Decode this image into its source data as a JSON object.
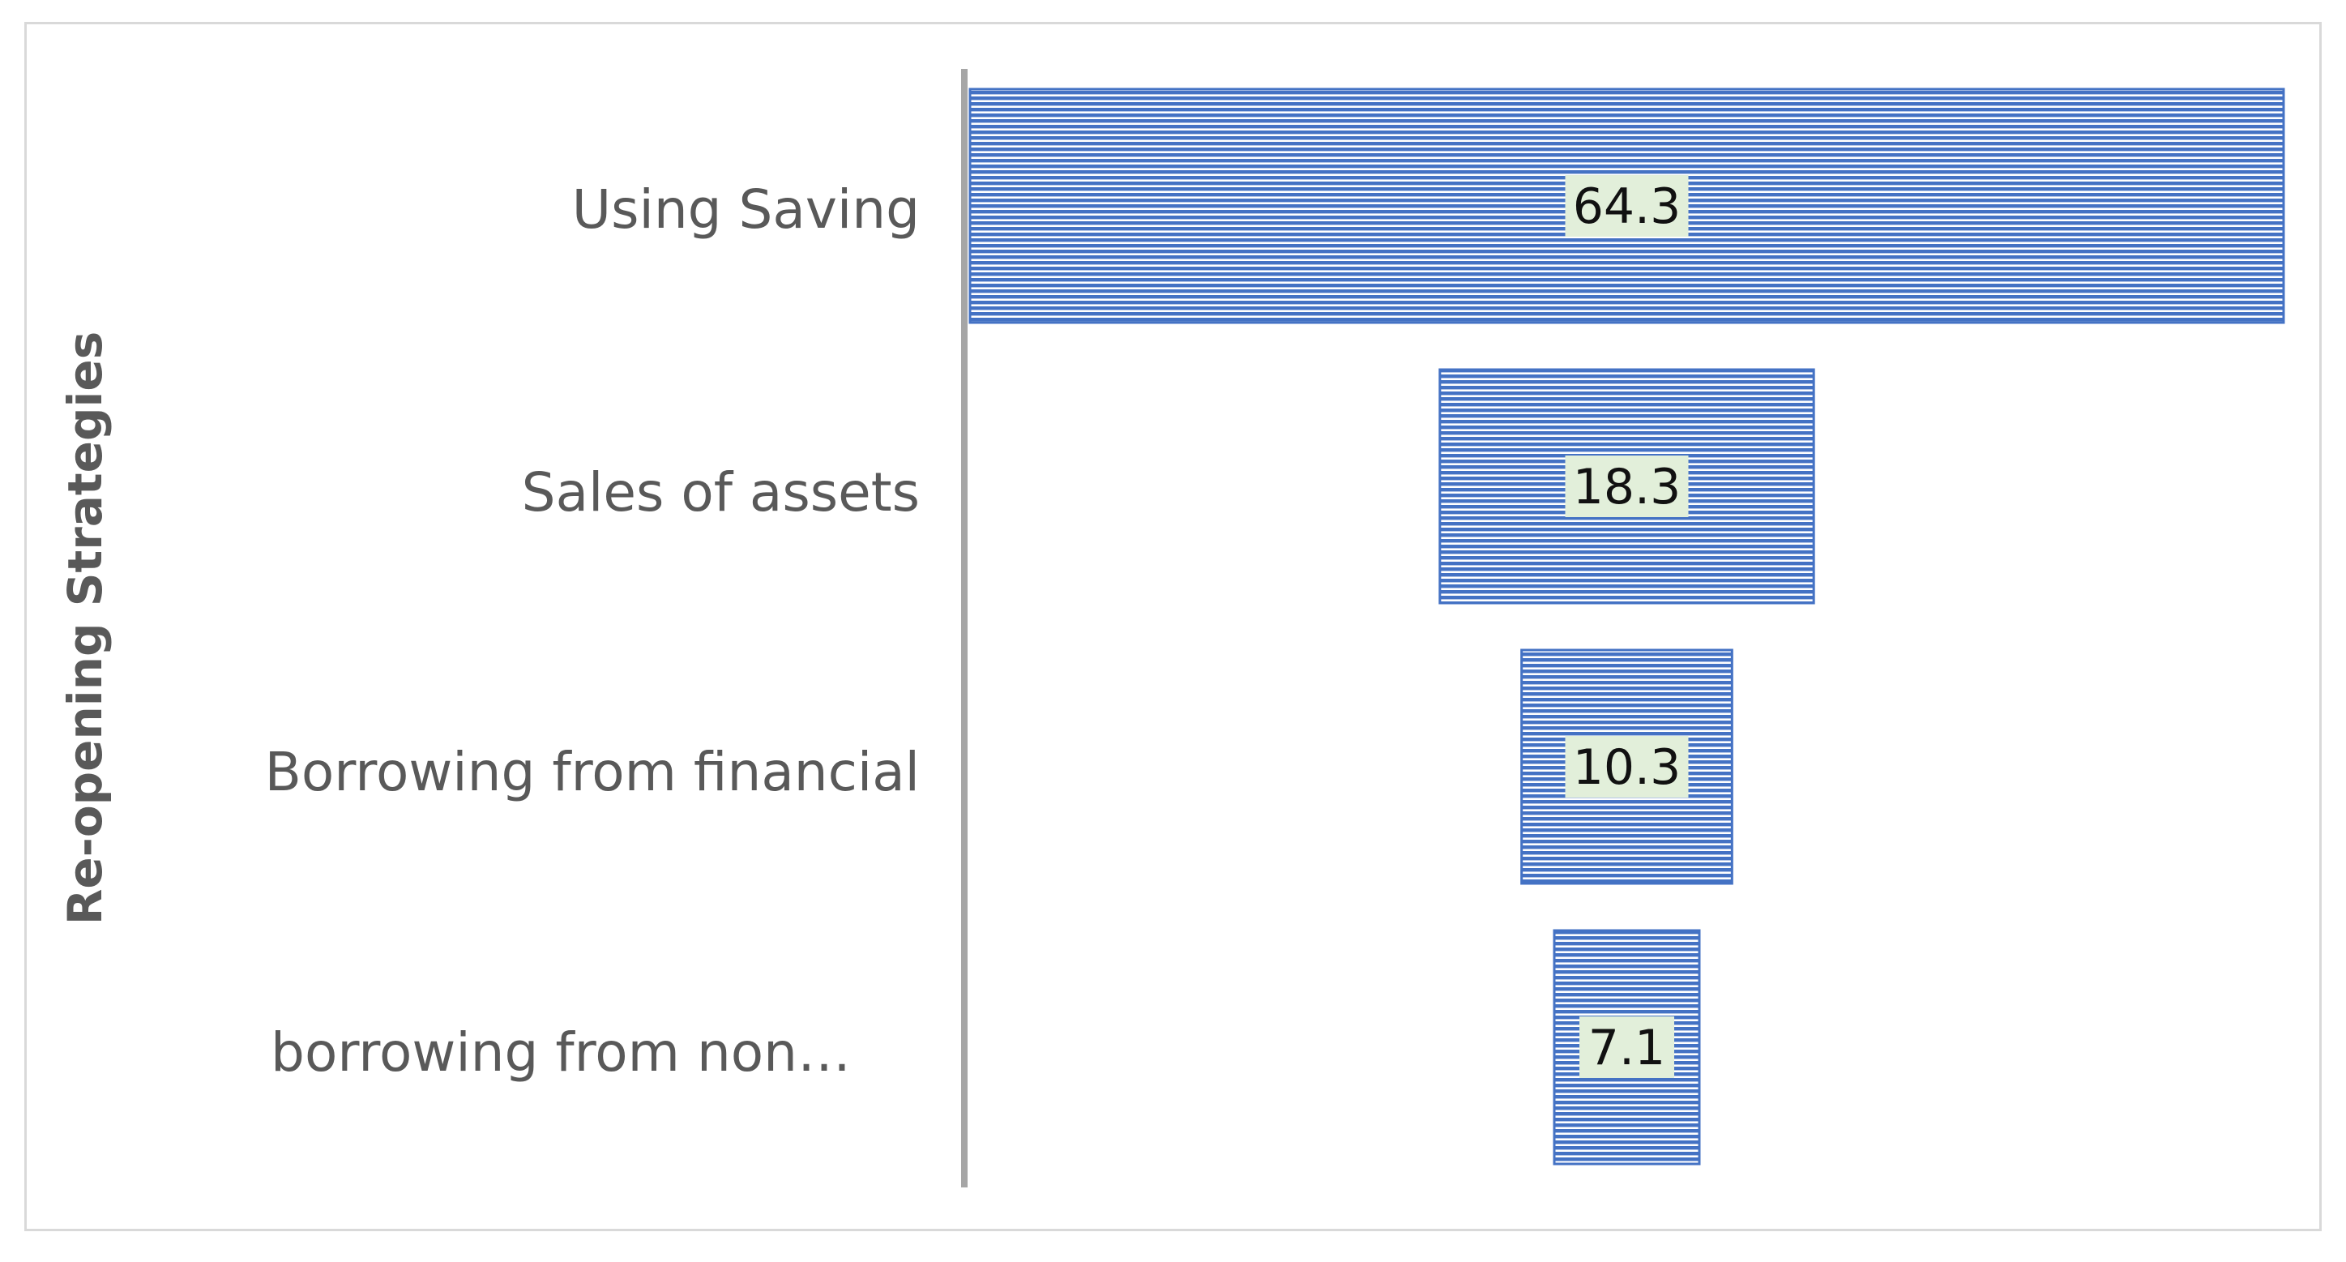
{
  "chart_data": {
    "type": "bar",
    "orientation": "horizontal",
    "style": "funnel",
    "ylabel": "Re-opening Strategies",
    "xlabel": "",
    "title": "",
    "categories": [
      "Using Saving",
      "Sales of assets",
      "Borrowing from financial",
      "borrowing from non…"
    ],
    "values": [
      64.3,
      18.3,
      10.3,
      7.1
    ],
    "data_labels": [
      "64.3",
      "18.3",
      "10.3",
      "7.1"
    ],
    "bar_color": "#4472c4",
    "bar_pattern": "horizontal-stripes",
    "data_label_background": "#e2efda",
    "legend": "none",
    "grid": false
  }
}
